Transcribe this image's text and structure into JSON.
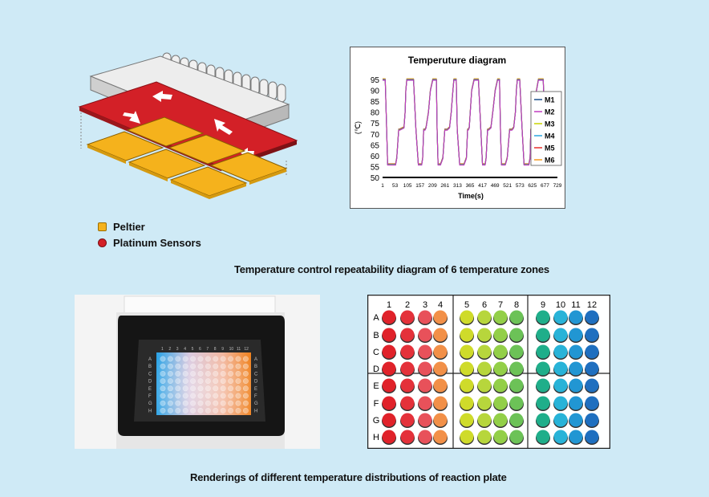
{
  "top_caption": "Temperature control repeatability diagram of 6 temperature zones",
  "bottom_caption": "Renderings of different temperature distributions of reaction plate",
  "legend": {
    "peltier": "Peltier",
    "sensors": "Platinum Sensors"
  },
  "colors": {
    "background": "#cfeaf6",
    "peltier": "#f5b21c",
    "sensor": "#d32027",
    "heatsink": "#e4e4e4"
  },
  "chart_data": {
    "type": "line",
    "title": "Temperuture diagram",
    "xlabel": "Time(s)",
    "ylabel": "(℃)",
    "ylim": [
      50,
      95
    ],
    "yticks": [
      50,
      55,
      60,
      65,
      70,
      75,
      80,
      85,
      90,
      95
    ],
    "xticks": [
      "1",
      "53",
      "105",
      "157",
      "209",
      "261",
      "313",
      "365",
      "417",
      "469",
      "521",
      "573",
      "625",
      "677",
      "729"
    ],
    "xlim": [
      1,
      729
    ],
    "series": [
      {
        "name": "M1",
        "color": "#1a4f8a"
      },
      {
        "name": "M2",
        "color": "#c03cc0"
      },
      {
        "name": "M3",
        "color": "#c9d400"
      },
      {
        "name": "M4",
        "color": "#2aa7e0"
      },
      {
        "name": "M5",
        "color": "#e8302b"
      },
      {
        "name": "M6",
        "color": "#f29a1f"
      }
    ],
    "profile": {
      "x": [
        1,
        6,
        12,
        18,
        22,
        55,
        60,
        68,
        72,
        90,
        95,
        98,
        102,
        106,
        112,
        122,
        130,
        140,
        150,
        157,
        164,
        168,
        172,
        178,
        182,
        192,
        200,
        210,
        220,
        225,
        228,
        232,
        236,
        242,
        252,
        260,
        270,
        280,
        287,
        294,
        298,
        302,
        308,
        312,
        322,
        330,
        340,
        350,
        355,
        358,
        362,
        366,
        372,
        382,
        390,
        400,
        410,
        417,
        424,
        428,
        432,
        438,
        442,
        452,
        460,
        470,
        480,
        485,
        488,
        492,
        496,
        502,
        512,
        520,
        530,
        540,
        547,
        554,
        558,
        562,
        568,
        572,
        582,
        590,
        600,
        610,
        615,
        618,
        622,
        626,
        632,
        642,
        650,
        660,
        670,
        677,
        684,
        688,
        692,
        698,
        702,
        712,
        720,
        729
      ],
      "y": [
        95,
        95,
        95,
        72,
        56,
        56,
        59,
        72,
        72,
        73,
        80,
        90,
        95,
        95,
        95,
        95,
        95,
        72,
        56,
        56,
        56,
        59,
        72,
        72,
        73,
        80,
        90,
        95,
        95,
        95,
        72,
        56,
        56,
        56,
        59,
        72,
        72,
        73,
        80,
        90,
        95,
        95,
        95,
        72,
        56,
        56,
        56,
        59,
        72,
        72,
        73,
        80,
        90,
        95,
        95,
        95,
        72,
        56,
        56,
        56,
        59,
        72,
        72,
        73,
        80,
        90,
        95,
        95,
        95,
        72,
        56,
        56,
        56,
        59,
        72,
        72,
        73,
        80,
        90,
        95,
        95,
        95,
        72,
        56,
        56,
        56,
        59,
        72,
        72,
        73,
        80,
        90,
        95,
        95,
        95,
        72,
        56,
        56,
        56,
        59,
        72,
        72,
        73,
        73
      ]
    }
  },
  "plate": {
    "columns": [
      "1",
      "2",
      "3",
      "4",
      "5",
      "6",
      "7",
      "8",
      "9",
      "10",
      "11",
      "12"
    ],
    "rows": [
      "A",
      "B",
      "C",
      "D",
      "E",
      "F",
      "G",
      "H"
    ],
    "column_colors": [
      "#e0222a",
      "#e4313a",
      "#e8515a",
      "#f29048",
      "#cfdb2a",
      "#b7d63c",
      "#93cf48",
      "#6cc257",
      "#1fae8a",
      "#28b3d8",
      "#2196d3",
      "#1f6fbf"
    ]
  },
  "photo": {
    "columns": [
      "1",
      "2",
      "3",
      "4",
      "5",
      "6",
      "7",
      "8",
      "9",
      "10",
      "11",
      "12"
    ],
    "rows": [
      "A",
      "B",
      "C",
      "D",
      "E",
      "F",
      "G",
      "H"
    ]
  }
}
